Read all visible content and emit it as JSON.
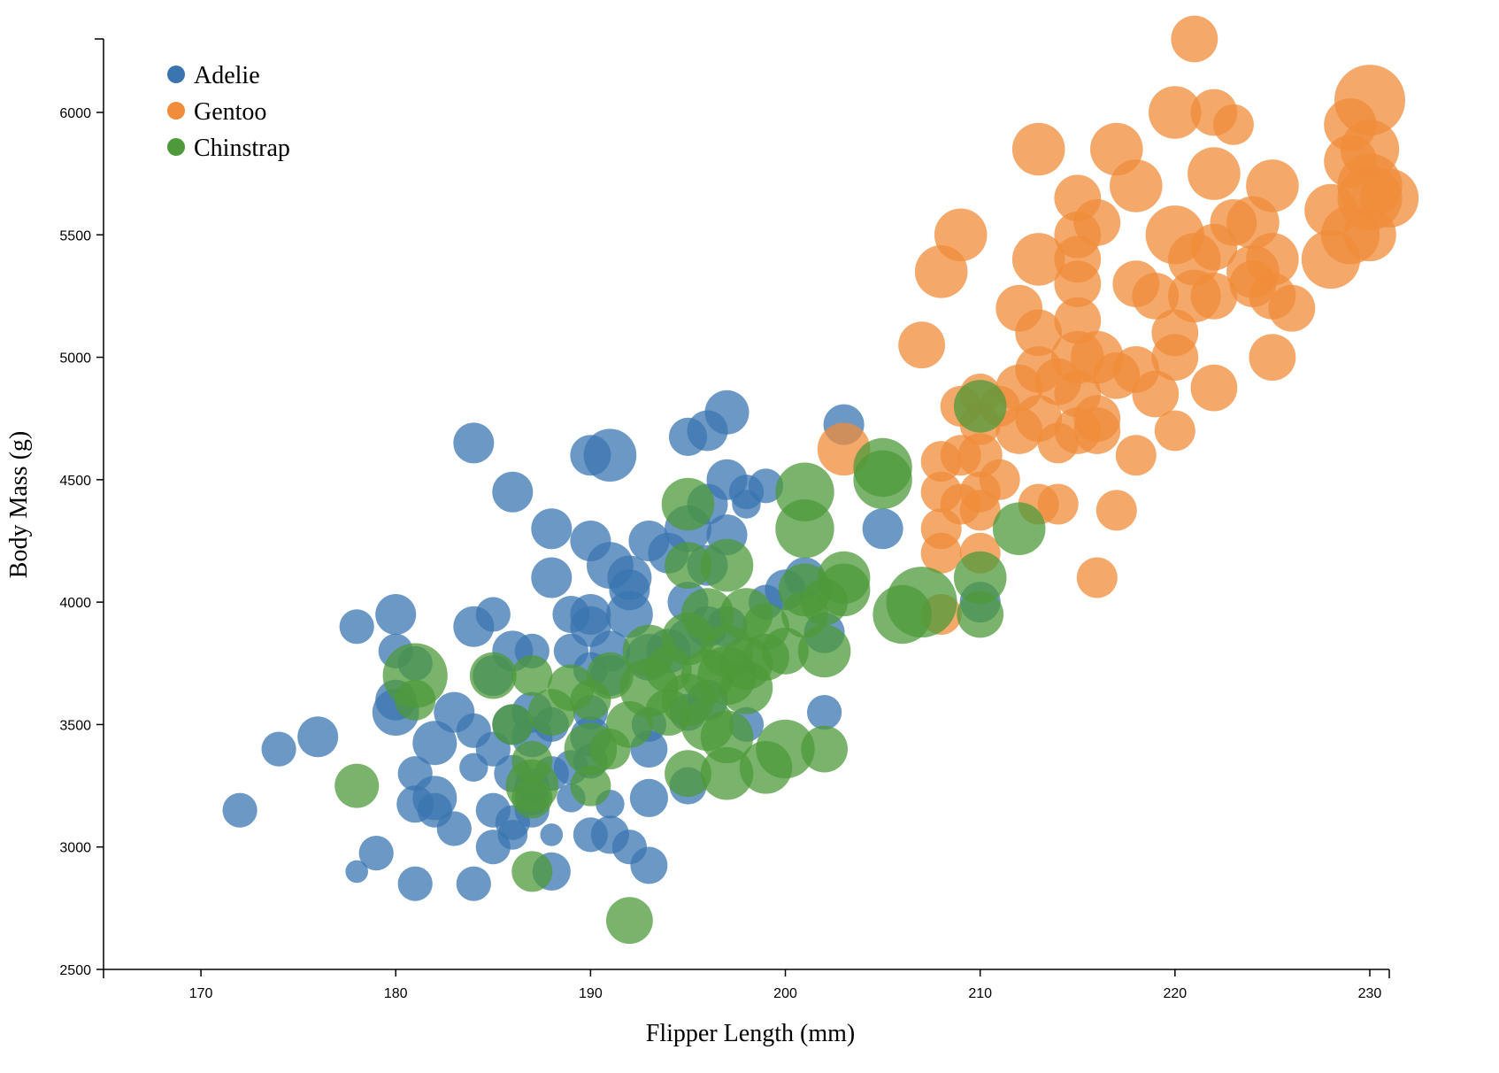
{
  "chart_data": {
    "type": "scatter",
    "xlabel": "Flipper Length (mm)",
    "ylabel": "Body Mass (g)",
    "xlim": [
      165,
      231
    ],
    "ylim": [
      2500,
      6300
    ],
    "x_ticks": [
      170,
      180,
      190,
      200,
      210,
      220,
      230
    ],
    "y_ticks": [
      2500,
      3000,
      3500,
      4000,
      4500,
      5000,
      5500,
      6000
    ],
    "legend_position": "top-left",
    "size_encoding": "marker radius varies per point (relative scale 1-5)",
    "series": [
      {
        "name": "Adelie",
        "color": "#3a75b0",
        "points": [
          [
            172,
            3150,
            2
          ],
          [
            174,
            3400,
            2
          ],
          [
            176,
            3450,
            2.5
          ],
          [
            178,
            2900,
            1
          ],
          [
            178,
            3900,
            2
          ],
          [
            179,
            2975,
            2
          ],
          [
            180,
            3950,
            2.5
          ],
          [
            180,
            3800,
            2
          ],
          [
            180,
            3600,
            2.5
          ],
          [
            180,
            3550,
            3
          ],
          [
            181,
            3750,
            2
          ],
          [
            181,
            3300,
            2
          ],
          [
            181,
            3175,
            2.2
          ],
          [
            181,
            2850,
            2
          ],
          [
            182,
            3200,
            2.8
          ],
          [
            182,
            3425,
            2.8
          ],
          [
            182,
            3150,
            2
          ],
          [
            183,
            3550,
            2.5
          ],
          [
            183,
            3075,
            2
          ],
          [
            184,
            3900,
            2.5
          ],
          [
            184,
            4650,
            2.5
          ],
          [
            184,
            3475,
            2
          ],
          [
            184,
            3325,
            1.5
          ],
          [
            184,
            2850,
            2
          ],
          [
            185,
            3950,
            2
          ],
          [
            185,
            3400,
            2
          ],
          [
            185,
            3150,
            2
          ],
          [
            185,
            3700,
            2.5
          ],
          [
            185,
            3000,
            2
          ],
          [
            186,
            4450,
            2.5
          ],
          [
            186,
            3800,
            2.5
          ],
          [
            186,
            3500,
            2.5
          ],
          [
            186,
            3100,
            2
          ],
          [
            186,
            3050,
            1.6
          ],
          [
            186,
            3300,
            2.2
          ],
          [
            187,
            3800,
            2
          ],
          [
            187,
            3550,
            2.5
          ],
          [
            187,
            3150,
            2
          ],
          [
            187,
            3450,
            2.5
          ],
          [
            187,
            3250,
            2
          ],
          [
            187,
            3200,
            2
          ],
          [
            188,
            4300,
            2.5
          ],
          [
            188,
            4100,
            2.5
          ],
          [
            188,
            2900,
            2.3
          ],
          [
            188,
            3050,
            1
          ],
          [
            188,
            3300,
            2
          ],
          [
            188,
            3500,
            2
          ],
          [
            189,
            3950,
            2.2
          ],
          [
            189,
            3800,
            2
          ],
          [
            189,
            3325,
            2
          ],
          [
            189,
            3200,
            1.5
          ],
          [
            190,
            4600,
            2.5
          ],
          [
            190,
            4250,
            2.5
          ],
          [
            190,
            3950,
            2.5
          ],
          [
            190,
            3900,
            2.5
          ],
          [
            190,
            3725,
            2
          ],
          [
            190,
            3450,
            2.5
          ],
          [
            190,
            3050,
            2
          ],
          [
            190,
            3350,
            2
          ],
          [
            190,
            3550,
            2
          ],
          [
            191,
            4600,
            3.5
          ],
          [
            191,
            4150,
            3
          ],
          [
            191,
            3800,
            2.5
          ],
          [
            191,
            3700,
            2.5
          ],
          [
            191,
            3175,
            1.5
          ],
          [
            191,
            3050,
            2.3
          ],
          [
            192,
            4100,
            2.8
          ],
          [
            192,
            4050,
            2.5
          ],
          [
            192,
            3950,
            3
          ],
          [
            192,
            3000,
            2
          ],
          [
            193,
            4250,
            2.5
          ],
          [
            193,
            3775,
            3
          ],
          [
            193,
            3500,
            2
          ],
          [
            193,
            3400,
            2.2
          ],
          [
            193,
            3200,
            2.3
          ],
          [
            193,
            2925,
            2.2
          ],
          [
            194,
            4200,
            2.5
          ],
          [
            194,
            3800,
            2.8
          ],
          [
            195,
            4675,
            2.3
          ],
          [
            195,
            4300,
            3
          ],
          [
            195,
            4000,
            2.5
          ],
          [
            195,
            3850,
            2.5
          ],
          [
            195,
            3550,
            2.2
          ],
          [
            195,
            3250,
            2.2
          ],
          [
            196,
            4700,
            2.5
          ],
          [
            196,
            4400,
            2.5
          ],
          [
            196,
            4150,
            2.5
          ],
          [
            196,
            3900,
            2.5
          ],
          [
            196,
            3600,
            2.5
          ],
          [
            197,
            4775,
            2.8
          ],
          [
            197,
            4500,
            2.5
          ],
          [
            197,
            4275,
            2.5
          ],
          [
            197,
            3900,
            2.5
          ],
          [
            198,
            4450,
            2
          ],
          [
            198,
            4400,
            1.5
          ],
          [
            198,
            3500,
            2
          ],
          [
            199,
            4475,
            2
          ],
          [
            199,
            4000,
            2
          ],
          [
            200,
            4050,
            2.5
          ],
          [
            201,
            4100,
            2.5
          ],
          [
            202,
            3875,
            2.5
          ],
          [
            202,
            3550,
            2
          ],
          [
            203,
            4725,
            2.5
          ],
          [
            205,
            4300,
            2.5
          ],
          [
            210,
            4000,
            2.5
          ]
        ]
      },
      {
        "name": "Gentoo",
        "color": "#f08c3a",
        "points": [
          [
            203,
            4625,
            3.5
          ],
          [
            207,
            5050,
            3
          ],
          [
            208,
            5350,
            3.5
          ],
          [
            208,
            4575,
            2.5
          ],
          [
            208,
            4450,
            2.5
          ],
          [
            208,
            4300,
            2.5
          ],
          [
            208,
            4200,
            2.5
          ],
          [
            208,
            3950,
            2.5
          ],
          [
            209,
            5500,
            3.5
          ],
          [
            209,
            4800,
            2.5
          ],
          [
            209,
            4600,
            2.5
          ],
          [
            209,
            4400,
            2.5
          ],
          [
            210,
            4850,
            2.5
          ],
          [
            210,
            4725,
            2.5
          ],
          [
            210,
            4600,
            2.8
          ],
          [
            210,
            4450,
            2.5
          ],
          [
            210,
            4375,
            2.5
          ],
          [
            210,
            4200,
            2.5
          ],
          [
            211,
            4800,
            2.5
          ],
          [
            211,
            4500,
            2.5
          ],
          [
            212,
            5200,
            3
          ],
          [
            212,
            4875,
            3
          ],
          [
            212,
            4700,
            3
          ],
          [
            213,
            5850,
            3.5
          ],
          [
            213,
            5400,
            3.5
          ],
          [
            213,
            5100,
            3
          ],
          [
            213,
            4950,
            3
          ],
          [
            213,
            4750,
            3
          ],
          [
            213,
            4400,
            2.5
          ],
          [
            214,
            4900,
            3
          ],
          [
            214,
            4650,
            2.5
          ],
          [
            214,
            4400,
            2.5
          ],
          [
            215,
            5650,
            3
          ],
          [
            215,
            5500,
            3
          ],
          [
            215,
            5400,
            3
          ],
          [
            215,
            5300,
            3
          ],
          [
            215,
            5150,
            3
          ],
          [
            215,
            5000,
            3.5
          ],
          [
            215,
            4850,
            3
          ],
          [
            215,
            4700,
            3
          ],
          [
            216,
            5550,
            3
          ],
          [
            216,
            5000,
            3.5
          ],
          [
            216,
            4750,
            3
          ],
          [
            216,
            4700,
            3
          ],
          [
            216,
            4100,
            2.5
          ],
          [
            217,
            5850,
            3.5
          ],
          [
            217,
            4925,
            3
          ],
          [
            217,
            4375,
            2.5
          ],
          [
            218,
            5700,
            3.5
          ],
          [
            218,
            5300,
            3
          ],
          [
            218,
            4950,
            3
          ],
          [
            218,
            4600,
            2.5
          ],
          [
            219,
            5250,
            3
          ],
          [
            219,
            4850,
            3
          ],
          [
            220,
            6000,
            3.5
          ],
          [
            220,
            5500,
            4
          ],
          [
            220,
            5100,
            3
          ],
          [
            220,
            5000,
            3
          ],
          [
            220,
            4700,
            2.5
          ],
          [
            221,
            6300,
            3
          ],
          [
            221,
            5400,
            3.5
          ],
          [
            221,
            5250,
            3.5
          ],
          [
            222,
            6000,
            3
          ],
          [
            222,
            5750,
            3.5
          ],
          [
            222,
            5450,
            3
          ],
          [
            222,
            5250,
            3
          ],
          [
            222,
            4875,
            3
          ],
          [
            223,
            5950,
            2.5
          ],
          [
            223,
            5550,
            3
          ],
          [
            224,
            5550,
            3.5
          ],
          [
            224,
            5350,
            3.5
          ],
          [
            224,
            5300,
            3
          ],
          [
            225,
            5700,
            3.5
          ],
          [
            225,
            5400,
            3.5
          ],
          [
            225,
            5250,
            3
          ],
          [
            225,
            5000,
            3
          ],
          [
            226,
            5200,
            3
          ],
          [
            228,
            5600,
            3.5
          ],
          [
            228,
            5400,
            4
          ],
          [
            229,
            5950,
            3.5
          ],
          [
            229,
            5800,
            3.5
          ],
          [
            229,
            5500,
            4
          ],
          [
            230,
            6050,
            5
          ],
          [
            230,
            5850,
            4
          ],
          [
            230,
            5700,
            4.5
          ],
          [
            230,
            5650,
            4.5
          ],
          [
            230,
            5500,
            3.5
          ],
          [
            231,
            5650,
            4
          ]
        ]
      },
      {
        "name": "Chinstrap",
        "color": "#4e9a3a",
        "points": [
          [
            178,
            3250,
            2.8
          ],
          [
            181,
            3700,
            4.5
          ],
          [
            181,
            3600,
            2.5
          ],
          [
            185,
            3700,
            3
          ],
          [
            186,
            3500,
            2.5
          ],
          [
            187,
            3700,
            2.5
          ],
          [
            187,
            3350,
            2.5
          ],
          [
            187,
            3250,
            3.5
          ],
          [
            187,
            3200,
            2.5
          ],
          [
            187,
            2900,
            2.5
          ],
          [
            188,
            3550,
            3
          ],
          [
            189,
            3650,
            3
          ],
          [
            190,
            3600,
            2.5
          ],
          [
            190,
            3400,
            3.5
          ],
          [
            190,
            3250,
            2.5
          ],
          [
            191,
            3700,
            3
          ],
          [
            191,
            3400,
            2.5
          ],
          [
            192,
            2700,
            3
          ],
          [
            192,
            3500,
            3
          ],
          [
            193,
            3800,
            3.5
          ],
          [
            193,
            3650,
            4
          ],
          [
            194,
            3725,
            3
          ],
          [
            194,
            3550,
            3
          ],
          [
            195,
            4400,
            3.5
          ],
          [
            195,
            4150,
            3
          ],
          [
            195,
            3850,
            3.5
          ],
          [
            195,
            3600,
            3.5
          ],
          [
            195,
            3300,
            3
          ],
          [
            196,
            3950,
            3.5
          ],
          [
            196,
            3700,
            3.5
          ],
          [
            196,
            3500,
            3.5
          ],
          [
            197,
            4150,
            3.5
          ],
          [
            197,
            3800,
            3.5
          ],
          [
            197,
            3700,
            4
          ],
          [
            197,
            3450,
            3.5
          ],
          [
            197,
            3300,
            3.5
          ],
          [
            198,
            3950,
            3.5
          ],
          [
            198,
            3750,
            3.5
          ],
          [
            198,
            3650,
            3.5
          ],
          [
            199,
            3775,
            3
          ],
          [
            199,
            3900,
            3
          ],
          [
            199,
            3325,
            3.5
          ],
          [
            200,
            3800,
            3
          ],
          [
            200,
            3400,
            4
          ],
          [
            201,
            4450,
            4
          ],
          [
            201,
            4300,
            4
          ],
          [
            201,
            4050,
            3.5
          ],
          [
            201,
            3950,
            3
          ],
          [
            202,
            4000,
            3
          ],
          [
            202,
            3800,
            3.5
          ],
          [
            202,
            3400,
            3
          ],
          [
            203,
            4100,
            3.5
          ],
          [
            203,
            4050,
            3.5
          ],
          [
            205,
            4550,
            4
          ],
          [
            205,
            4500,
            4
          ],
          [
            206,
            3950,
            4
          ],
          [
            207,
            4000,
            5
          ],
          [
            210,
            4800,
            3.5
          ],
          [
            210,
            4100,
            3.5
          ],
          [
            210,
            3950,
            3
          ],
          [
            212,
            4300,
            3.5
          ]
        ]
      }
    ]
  }
}
